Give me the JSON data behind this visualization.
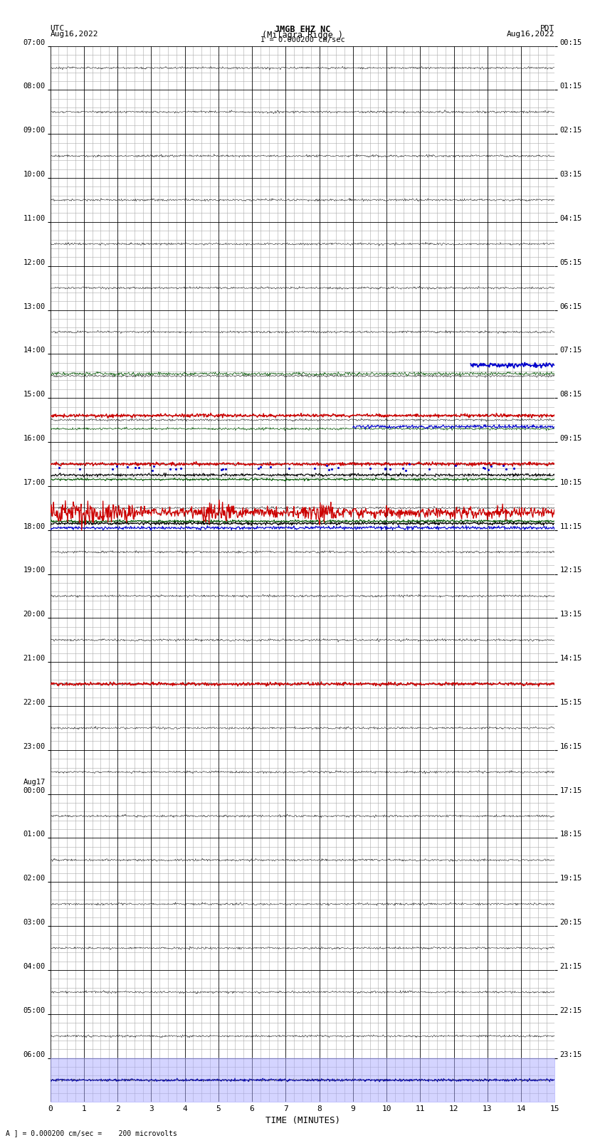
{
  "title_line1": "JMGB EHZ NC",
  "title_line2": "(Milagra Ridge )",
  "title_line3": "I = 0.000200 cm/sec",
  "left_label": "UTC",
  "left_date": "Aug16,2022",
  "right_label": "PDT",
  "right_date": "Aug16,2022",
  "xlabel": "TIME (MINUTES)",
  "footer": "A ] = 0.000200 cm/sec =    200 microvolts",
  "xmin": 0,
  "xmax": 15,
  "num_rows": 24,
  "left_times": [
    "07:00",
    "08:00",
    "09:00",
    "10:00",
    "11:00",
    "12:00",
    "13:00",
    "14:00",
    "15:00",
    "16:00",
    "17:00",
    "18:00",
    "19:00",
    "20:00",
    "21:00",
    "22:00",
    "23:00",
    "Aug17\n00:00",
    "01:00",
    "02:00",
    "03:00",
    "04:00",
    "05:00",
    "06:00"
  ],
  "right_times": [
    "00:15",
    "01:15",
    "02:15",
    "03:15",
    "04:15",
    "05:15",
    "06:15",
    "07:15",
    "08:15",
    "09:15",
    "10:15",
    "11:15",
    "12:15",
    "13:15",
    "14:15",
    "15:15",
    "16:15",
    "17:15",
    "18:15",
    "19:15",
    "20:15",
    "21:15",
    "22:15",
    "23:15"
  ],
  "bg_color": "#ffffff",
  "major_grid_color": "#000000",
  "minor_grid_color": "#aaaaaa",
  "minor_per_row": 5,
  "minor_per_minute": 4
}
